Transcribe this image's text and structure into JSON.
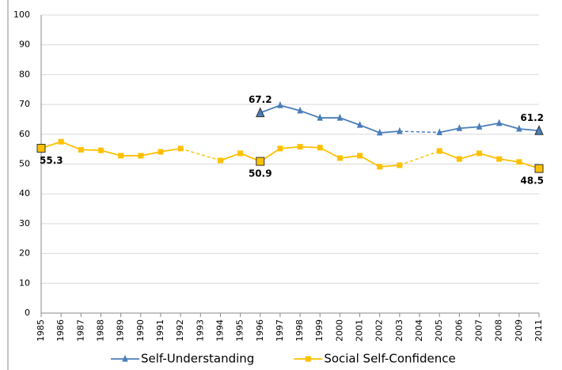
{
  "chart_data": {
    "type": "line",
    "categories": [
      "1985",
      "1986",
      "1987",
      "1988",
      "1989",
      "1990",
      "1991",
      "1992",
      "1993",
      "1994",
      "1995",
      "1996",
      "1997",
      "1998",
      "1999",
      "2000",
      "2001",
      "2002",
      "2003",
      "2004",
      "2005",
      "2006",
      "2007",
      "2008",
      "2009",
      "2011"
    ],
    "series": [
      {
        "name": "Self-Understanding",
        "color": "#4a7ebb",
        "marker": "triangle",
        "values": [
          null,
          null,
          null,
          null,
          null,
          null,
          null,
          null,
          null,
          null,
          null,
          67.2,
          69.7,
          67.9,
          65.5,
          65.5,
          63.1,
          60.5,
          61.0,
          null,
          60.6,
          62.0,
          62.5,
          63.7,
          61.8,
          61.2
        ],
        "labeled_points": [
          11,
          25
        ]
      },
      {
        "name": "Social Self-Confidence",
        "color": "#ffc000",
        "marker": "square",
        "values": [
          55.3,
          57.5,
          54.8,
          54.6,
          52.8,
          52.8,
          54.1,
          55.2,
          null,
          51.2,
          53.6,
          50.9,
          55.2,
          55.8,
          55.5,
          52.0,
          52.8,
          49.1,
          49.6,
          null,
          54.4,
          51.7,
          53.6,
          51.7,
          50.7,
          48.5
        ],
        "labeled_points": [
          0,
          11,
          25
        ]
      }
    ],
    "ylim": [
      0,
      100
    ],
    "yticks": [
      0,
      10,
      20,
      30,
      40,
      50,
      60,
      70,
      80,
      90,
      100
    ],
    "grid": true,
    "gaps": "dashed",
    "legend": "bottom"
  }
}
